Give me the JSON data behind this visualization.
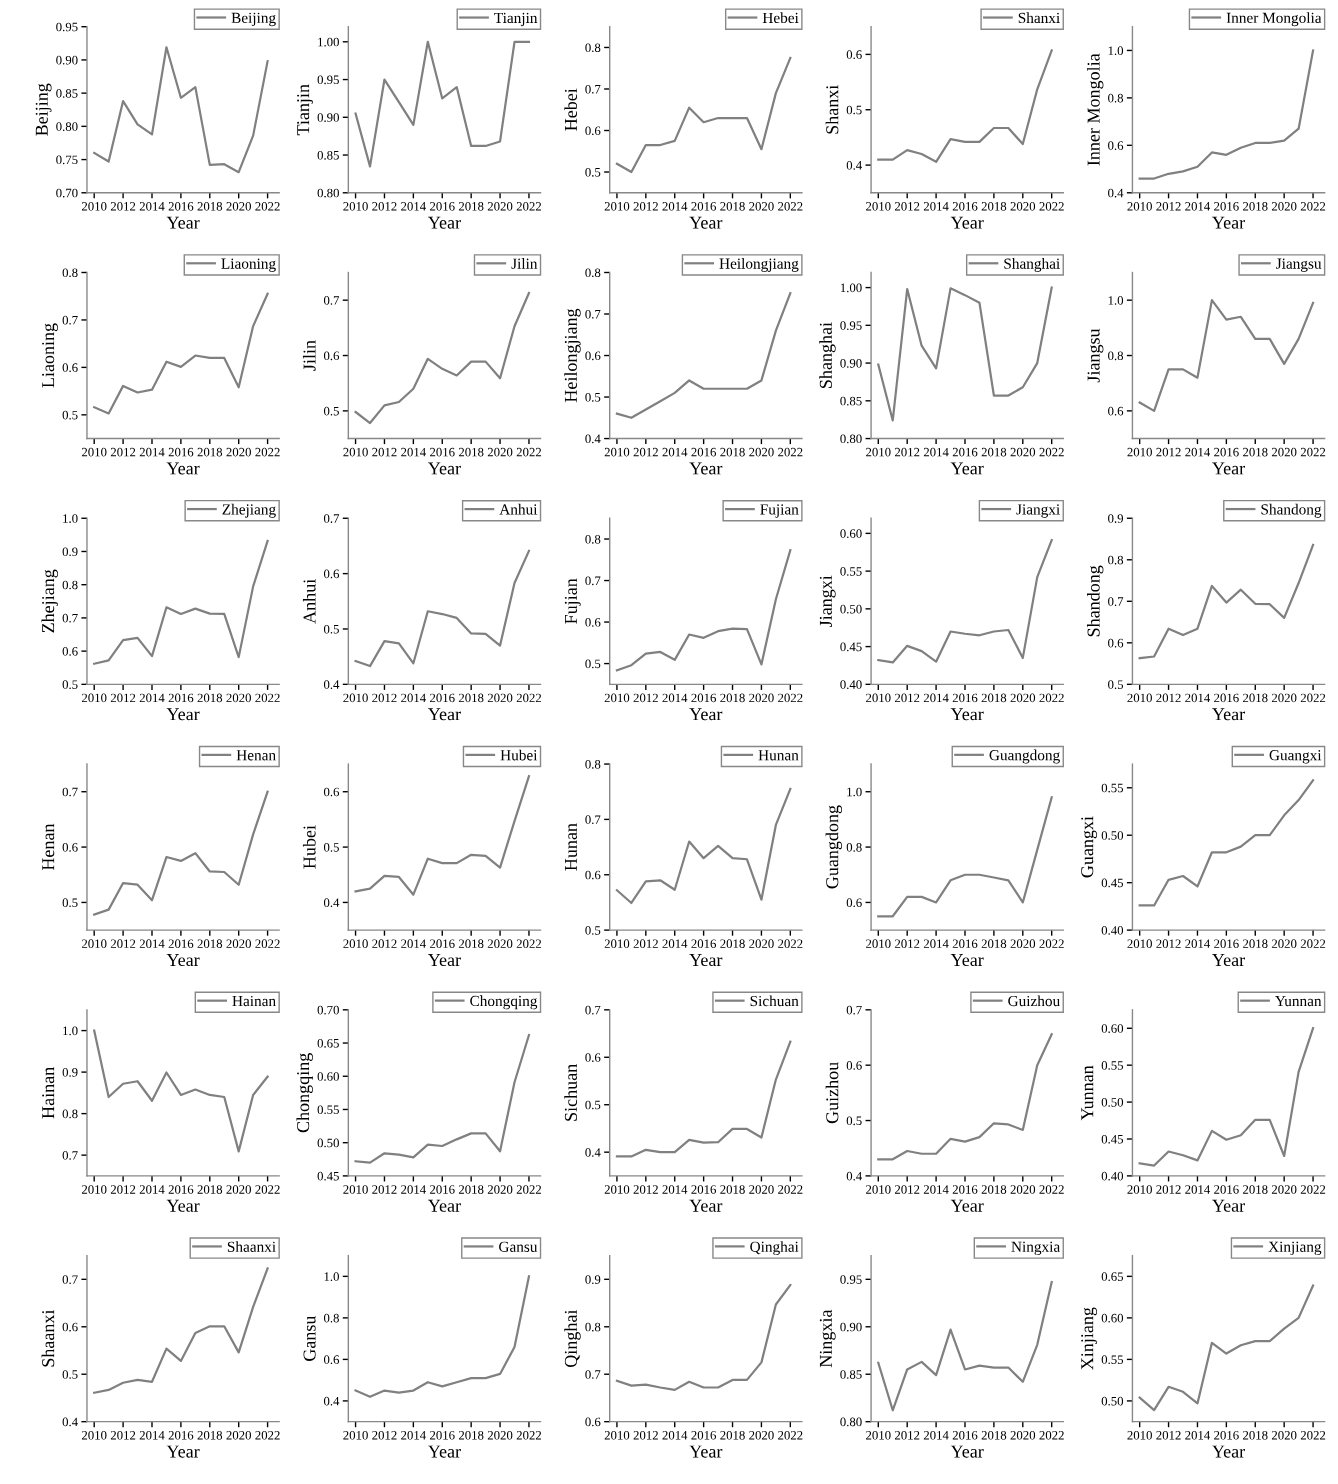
{
  "chart_data": [
    {
      "type": "line",
      "x": [
        2010,
        2011,
        2012,
        2013,
        2014,
        2015,
        2016,
        2017,
        2018,
        2019,
        2020,
        2021,
        2022
      ],
      "xlim": [
        2009.5,
        2022.8
      ],
      "xticks": [
        2010,
        2012,
        2014,
        2016,
        2018,
        2020,
        2022
      ],
      "xlabel": "Year",
      "ylabel": "Beijing",
      "ylim": [
        0.7,
        0.95
      ],
      "yticks": [
        {
          "value": 0.7,
          "label": "0.70"
        },
        {
          "value": 0.75,
          "label": "0.75"
        },
        {
          "value": 0.8,
          "label": "0.80"
        },
        {
          "value": 0.85,
          "label": "0.85"
        },
        {
          "value": 0.9,
          "label": "0.90"
        },
        {
          "value": 0.95,
          "label": "0.95"
        }
      ],
      "legend": "top right",
      "series": [
        {
          "name": "Beijing",
          "color": "#808080",
          "values": [
            0.76,
            0.747,
            0.838,
            0.803,
            0.788,
            0.919,
            0.843,
            0.859,
            0.742,
            0.743,
            0.731,
            0.786,
            0.898
          ]
        }
      ]
    },
    {
      "type": "line",
      "x": [
        2010,
        2011,
        2012,
        2013,
        2014,
        2015,
        2016,
        2017,
        2018,
        2019,
        2020,
        2021,
        2022
      ],
      "xlim": [
        2009.5,
        2022.8
      ],
      "xticks": [
        2010,
        2012,
        2014,
        2016,
        2018,
        2020,
        2022
      ],
      "xlabel": "Year",
      "ylabel": "Tianjin",
      "ylim": [
        0.8,
        1.02
      ],
      "yticks": [
        {
          "value": 0.8,
          "label": "0.80"
        },
        {
          "value": 0.85,
          "label": "0.85"
        },
        {
          "value": 0.9,
          "label": "0.90"
        },
        {
          "value": 0.95,
          "label": "0.95"
        },
        {
          "value": 1.0,
          "label": "1.00"
        }
      ],
      "legend": "top right",
      "series": [
        {
          "name": "Tianjin",
          "color": "#808080",
          "values": [
            0.905,
            0.835,
            0.95,
            0.92,
            0.89,
            1.0,
            0.925,
            0.94,
            0.862,
            0.862,
            0.868,
            1.0,
            1.0
          ]
        }
      ]
    },
    {
      "type": "line",
      "x": [
        2010,
        2011,
        2012,
        2013,
        2014,
        2015,
        2016,
        2017,
        2018,
        2019,
        2020,
        2021,
        2022
      ],
      "xlim": [
        2009.5,
        2022.8
      ],
      "xticks": [
        2010,
        2012,
        2014,
        2016,
        2018,
        2020,
        2022
      ],
      "xlabel": "Year",
      "ylabel": "Hebei",
      "ylim": [
        0.45,
        0.85
      ],
      "yticks": [
        0.5,
        0.6,
        0.7,
        0.8
      ],
      "legend": "top right",
      "series": [
        {
          "name": "Hebei",
          "color": "#808080",
          "values": [
            0.52,
            0.5,
            0.565,
            0.565,
            0.575,
            0.655,
            0.62,
            0.63,
            0.63,
            0.63,
            0.555,
            0.69,
            0.775
          ]
        }
      ]
    },
    {
      "type": "line",
      "x": [
        2010,
        2011,
        2012,
        2013,
        2014,
        2015,
        2016,
        2017,
        2018,
        2019,
        2020,
        2021,
        2022
      ],
      "xlim": [
        2009.5,
        2022.8
      ],
      "xticks": [
        2010,
        2012,
        2014,
        2016,
        2018,
        2020,
        2022
      ],
      "xlabel": "Year",
      "ylabel": "Shanxi",
      "ylim": [
        0.35,
        0.65
      ],
      "yticks": [
        0.4,
        0.5,
        0.6
      ],
      "legend": "top right",
      "series": [
        {
          "name": "Shanxi",
          "color": "#808080",
          "values": [
            0.41,
            0.41,
            0.427,
            0.42,
            0.406,
            0.447,
            0.442,
            0.442,
            0.467,
            0.467,
            0.438,
            0.537,
            0.607
          ]
        }
      ]
    },
    {
      "type": "line",
      "x": [
        2010,
        2011,
        2012,
        2013,
        2014,
        2015,
        2016,
        2017,
        2018,
        2019,
        2020,
        2021,
        2022
      ],
      "xlim": [
        2009.5,
        2022.8
      ],
      "xticks": [
        2010,
        2012,
        2014,
        2016,
        2018,
        2020,
        2022
      ],
      "xlabel": "Year",
      "ylabel": "Inner Mongolia",
      "ylim": [
        0.4,
        1.1
      ],
      "yticks": [
        0.4,
        0.6,
        0.8,
        {
          "value": 1.0,
          "label": "1.0"
        }
      ],
      "legend": "top right",
      "series": [
        {
          "name": "Inner Mongolia",
          "color": "#808080",
          "values": [
            0.46,
            0.46,
            0.48,
            0.49,
            0.51,
            0.57,
            0.56,
            0.59,
            0.61,
            0.61,
            0.62,
            0.67,
            1.0
          ]
        }
      ]
    },
    {
      "type": "line",
      "x": [
        2010,
        2011,
        2012,
        2013,
        2014,
        2015,
        2016,
        2017,
        2018,
        2019,
        2020,
        2021,
        2022
      ],
      "xlim": [
        2009.5,
        2022.8
      ],
      "xticks": [
        2010,
        2012,
        2014,
        2016,
        2018,
        2020,
        2022
      ],
      "xlabel": "Year",
      "ylabel": "Liaoning",
      "ylim": [
        0.45,
        0.8
      ],
      "yticks": [
        0.5,
        0.6,
        0.7,
        0.8
      ],
      "legend": "top right",
      "series": [
        {
          "name": "Liaoning",
          "color": "#808080",
          "values": [
            0.516,
            0.503,
            0.561,
            0.547,
            0.553,
            0.612,
            0.601,
            0.625,
            0.62,
            0.62,
            0.558,
            0.687,
            0.755
          ]
        }
      ]
    },
    {
      "type": "line",
      "x": [
        2010,
        2011,
        2012,
        2013,
        2014,
        2015,
        2016,
        2017,
        2018,
        2019,
        2020,
        2021,
        2022
      ],
      "xlim": [
        2009.5,
        2022.8
      ],
      "xticks": [
        2010,
        2012,
        2014,
        2016,
        2018,
        2020,
        2022
      ],
      "xlabel": "Year",
      "ylabel": "Jilin",
      "ylim": [
        0.45,
        0.75
      ],
      "yticks": [
        0.5,
        0.6,
        0.7
      ],
      "legend": "top right",
      "series": [
        {
          "name": "Jilin",
          "color": "#808080",
          "values": [
            0.498,
            0.478,
            0.51,
            0.516,
            0.54,
            0.594,
            0.576,
            0.564,
            0.589,
            0.589,
            0.559,
            0.653,
            0.713
          ]
        }
      ]
    },
    {
      "type": "line",
      "x": [
        2010,
        2011,
        2012,
        2013,
        2014,
        2015,
        2016,
        2017,
        2018,
        2019,
        2020,
        2021,
        2022
      ],
      "xlim": [
        2009.5,
        2022.8
      ],
      "xticks": [
        2010,
        2012,
        2014,
        2016,
        2018,
        2020,
        2022
      ],
      "xlabel": "Year",
      "ylabel": "Heilongjiang",
      "ylim": [
        0.4,
        0.8
      ],
      "yticks": [
        0.4,
        0.5,
        0.6,
        0.7,
        0.8
      ],
      "legend": "top right",
      "series": [
        {
          "name": "Heilongjiang",
          "color": "#808080",
          "values": [
            0.46,
            0.45,
            0.47,
            0.49,
            0.51,
            0.54,
            0.52,
            0.52,
            0.52,
            0.52,
            0.54,
            0.66,
            0.75
          ]
        }
      ]
    },
    {
      "type": "line",
      "x": [
        2010,
        2011,
        2012,
        2013,
        2014,
        2015,
        2016,
        2017,
        2018,
        2019,
        2020,
        2021,
        2022
      ],
      "xlim": [
        2009.5,
        2022.8
      ],
      "xticks": [
        2010,
        2012,
        2014,
        2016,
        2018,
        2020,
        2022
      ],
      "xlabel": "Year",
      "ylabel": "Shanghai",
      "ylim": [
        0.8,
        1.02
      ],
      "yticks": [
        {
          "value": 0.8,
          "label": "0.80"
        },
        {
          "value": 0.85,
          "label": "0.85"
        },
        {
          "value": 0.9,
          "label": "0.90"
        },
        {
          "value": 0.95,
          "label": "0.95"
        },
        {
          "value": 1.0,
          "label": "1.00"
        }
      ],
      "legend": "top right",
      "series": [
        {
          "name": "Shanghai",
          "color": "#808080",
          "values": [
            0.898,
            0.824,
            0.998,
            0.923,
            0.893,
            0.999,
            0.99,
            0.98,
            0.857,
            0.857,
            0.868,
            0.9,
            1.0
          ]
        }
      ]
    },
    {
      "type": "line",
      "x": [
        2010,
        2011,
        2012,
        2013,
        2014,
        2015,
        2016,
        2017,
        2018,
        2019,
        2020,
        2021,
        2022
      ],
      "xlim": [
        2009.5,
        2022.8
      ],
      "xticks": [
        2010,
        2012,
        2014,
        2016,
        2018,
        2020,
        2022
      ],
      "xlabel": "Year",
      "ylabel": "Jiangsu",
      "ylim": [
        0.5,
        1.1
      ],
      "yticks": [
        0.6,
        0.8,
        {
          "value": 1.0,
          "label": "1.0"
        }
      ],
      "legend": "top right",
      "series": [
        {
          "name": "Jiangsu",
          "color": "#808080",
          "values": [
            0.63,
            0.6,
            0.75,
            0.75,
            0.72,
            1.0,
            0.93,
            0.94,
            0.86,
            0.86,
            0.77,
            0.86,
            0.99
          ]
        }
      ]
    },
    {
      "type": "line",
      "x": [
        2010,
        2011,
        2012,
        2013,
        2014,
        2015,
        2016,
        2017,
        2018,
        2019,
        2020,
        2021,
        2022
      ],
      "xlim": [
        2009.5,
        2022.8
      ],
      "xticks": [
        2010,
        2012,
        2014,
        2016,
        2018,
        2020,
        2022
      ],
      "xlabel": "Year",
      "ylabel": "Zhejiang",
      "ylim": [
        0.5,
        1.0
      ],
      "yticks": [
        0.5,
        0.6,
        0.7,
        0.8,
        0.9,
        {
          "value": 1.0,
          "label": "1.0"
        }
      ],
      "legend": "top right",
      "series": [
        {
          "name": "Zhejiang",
          "color": "#808080",
          "values": [
            0.562,
            0.572,
            0.633,
            0.64,
            0.585,
            0.732,
            0.712,
            0.728,
            0.713,
            0.712,
            0.582,
            0.795,
            0.932
          ]
        }
      ]
    },
    {
      "type": "line",
      "x": [
        2010,
        2011,
        2012,
        2013,
        2014,
        2015,
        2016,
        2017,
        2018,
        2019,
        2020,
        2021,
        2022
      ],
      "xlim": [
        2009.5,
        2022.8
      ],
      "xticks": [
        2010,
        2012,
        2014,
        2016,
        2018,
        2020,
        2022
      ],
      "xlabel": "Year",
      "ylabel": "Anhui",
      "ylim": [
        0.4,
        0.7
      ],
      "yticks": [
        0.4,
        0.5,
        0.6,
        0.7
      ],
      "legend": "top right",
      "series": [
        {
          "name": "Anhui",
          "color": "#808080",
          "values": [
            0.442,
            0.433,
            0.478,
            0.474,
            0.438,
            0.532,
            0.527,
            0.52,
            0.492,
            0.491,
            0.47,
            0.583,
            0.641
          ]
        }
      ]
    },
    {
      "type": "line",
      "x": [
        2010,
        2011,
        2012,
        2013,
        2014,
        2015,
        2016,
        2017,
        2018,
        2019,
        2020,
        2021,
        2022
      ],
      "xlim": [
        2009.5,
        2022.8
      ],
      "xticks": [
        2010,
        2012,
        2014,
        2016,
        2018,
        2020,
        2022
      ],
      "xlabel": "Year",
      "ylabel": "Fujian",
      "ylim": [
        0.45,
        0.85
      ],
      "yticks": [
        0.5,
        0.6,
        0.7,
        0.8
      ],
      "legend": "top right",
      "series": [
        {
          "name": "Fujian",
          "color": "#808080",
          "values": [
            0.484,
            0.496,
            0.524,
            0.528,
            0.509,
            0.57,
            0.562,
            0.578,
            0.584,
            0.583,
            0.498,
            0.655,
            0.773
          ]
        }
      ]
    },
    {
      "type": "line",
      "x": [
        2010,
        2011,
        2012,
        2013,
        2014,
        2015,
        2016,
        2017,
        2018,
        2019,
        2020,
        2021,
        2022
      ],
      "xlim": [
        2009.5,
        2022.8
      ],
      "xticks": [
        2010,
        2012,
        2014,
        2016,
        2018,
        2020,
        2022
      ],
      "xlabel": "Year",
      "ylabel": "Jiangxi",
      "ylim": [
        0.4,
        0.62
      ],
      "yticks": [
        {
          "value": 0.4,
          "label": "0.40"
        },
        {
          "value": 0.45,
          "label": "0.45"
        },
        {
          "value": 0.5,
          "label": "0.50"
        },
        {
          "value": 0.55,
          "label": "0.55"
        },
        {
          "value": 0.6,
          "label": "0.60"
        }
      ],
      "legend": "top right",
      "series": [
        {
          "name": "Jiangxi",
          "color": "#808080",
          "values": [
            0.432,
            0.429,
            0.451,
            0.444,
            0.43,
            0.47,
            0.467,
            0.465,
            0.47,
            0.472,
            0.435,
            0.542,
            0.591
          ]
        }
      ]
    },
    {
      "type": "line",
      "x": [
        2010,
        2011,
        2012,
        2013,
        2014,
        2015,
        2016,
        2017,
        2018,
        2019,
        2020,
        2021,
        2022
      ],
      "xlim": [
        2009.5,
        2022.8
      ],
      "xticks": [
        2010,
        2012,
        2014,
        2016,
        2018,
        2020,
        2022
      ],
      "xlabel": "Year",
      "ylabel": "Shandong",
      "ylim": [
        0.5,
        0.9
      ],
      "yticks": [
        0.5,
        0.6,
        0.7,
        0.8,
        0.9
      ],
      "legend": "top right",
      "series": [
        {
          "name": "Shandong",
          "color": "#808080",
          "values": [
            0.563,
            0.567,
            0.634,
            0.619,
            0.634,
            0.737,
            0.697,
            0.728,
            0.694,
            0.693,
            0.66,
            0.744,
            0.836
          ]
        }
      ]
    },
    {
      "type": "line",
      "x": [
        2010,
        2011,
        2012,
        2013,
        2014,
        2015,
        2016,
        2017,
        2018,
        2019,
        2020,
        2021,
        2022
      ],
      "xlim": [
        2009.5,
        2022.8
      ],
      "xticks": [
        2010,
        2012,
        2014,
        2016,
        2018,
        2020,
        2022
      ],
      "xlabel": "Year",
      "ylabel": "Henan",
      "ylim": [
        0.45,
        0.75
      ],
      "yticks": [
        0.5,
        0.6,
        0.7
      ],
      "legend": "top right",
      "series": [
        {
          "name": "Henan",
          "color": "#808080",
          "values": [
            0.478,
            0.487,
            0.535,
            0.532,
            0.504,
            0.582,
            0.575,
            0.589,
            0.556,
            0.555,
            0.532,
            0.623,
            0.7
          ]
        }
      ]
    },
    {
      "type": "line",
      "x": [
        2010,
        2011,
        2012,
        2013,
        2014,
        2015,
        2016,
        2017,
        2018,
        2019,
        2020,
        2021,
        2022
      ],
      "xlim": [
        2009.5,
        2022.8
      ],
      "xticks": [
        2010,
        2012,
        2014,
        2016,
        2018,
        2020,
        2022
      ],
      "xlabel": "Year",
      "ylabel": "Hubei",
      "ylim": [
        0.35,
        0.65
      ],
      "yticks": [
        0.4,
        0.5,
        0.6
      ],
      "legend": "top right",
      "series": [
        {
          "name": "Hubei",
          "color": "#808080",
          "values": [
            0.42,
            0.425,
            0.448,
            0.446,
            0.414,
            0.479,
            0.471,
            0.471,
            0.486,
            0.484,
            0.463,
            0.547,
            0.628
          ]
        }
      ]
    },
    {
      "type": "line",
      "x": [
        2010,
        2011,
        2012,
        2013,
        2014,
        2015,
        2016,
        2017,
        2018,
        2019,
        2020,
        2021,
        2022
      ],
      "xlim": [
        2009.5,
        2022.8
      ],
      "xticks": [
        2010,
        2012,
        2014,
        2016,
        2018,
        2020,
        2022
      ],
      "xlabel": "Year",
      "ylabel": "Hunan",
      "ylim": [
        0.5,
        0.8
      ],
      "yticks": [
        0.5,
        0.6,
        0.7,
        0.8
      ],
      "legend": "top right",
      "series": [
        {
          "name": "Hunan",
          "color": "#808080",
          "values": [
            0.572,
            0.549,
            0.588,
            0.59,
            0.573,
            0.66,
            0.63,
            0.652,
            0.63,
            0.628,
            0.555,
            0.69,
            0.755
          ]
        }
      ]
    },
    {
      "type": "line",
      "x": [
        2010,
        2011,
        2012,
        2013,
        2014,
        2015,
        2016,
        2017,
        2018,
        2019,
        2020,
        2021,
        2022
      ],
      "xlim": [
        2009.5,
        2022.8
      ],
      "xticks": [
        2010,
        2012,
        2014,
        2016,
        2018,
        2020,
        2022
      ],
      "xlabel": "Year",
      "ylabel": "Guangdong",
      "ylim": [
        0.5,
        1.1
      ],
      "yticks": [
        0.6,
        0.8,
        {
          "value": 1.0,
          "label": "1.0"
        }
      ],
      "legend": "top right",
      "series": [
        {
          "name": "Guangdong",
          "color": "#808080",
          "values": [
            0.55,
            0.55,
            0.62,
            0.62,
            0.6,
            0.68,
            0.7,
            0.7,
            0.69,
            0.68,
            0.6,
            0.79,
            0.98
          ]
        }
      ]
    },
    {
      "type": "line",
      "x": [
        2010,
        2011,
        2012,
        2013,
        2014,
        2015,
        2016,
        2017,
        2018,
        2019,
        2020,
        2021,
        2022
      ],
      "xlim": [
        2009.5,
        2022.8
      ],
      "xticks": [
        2010,
        2012,
        2014,
        2016,
        2018,
        2020,
        2022
      ],
      "xlabel": "Year",
      "ylabel": "Guangxi",
      "ylim": [
        0.4,
        0.575
      ],
      "yticks": [
        {
          "value": 0.4,
          "label": "0.40"
        },
        {
          "value": 0.45,
          "label": "0.45"
        },
        {
          "value": 0.5,
          "label": "0.50"
        },
        {
          "value": 0.55,
          "label": "0.55"
        }
      ],
      "legend": "top right",
      "series": [
        {
          "name": "Guangxi",
          "color": "#808080",
          "values": [
            0.426,
            0.426,
            0.453,
            0.457,
            0.446,
            0.482,
            0.482,
            0.488,
            0.5,
            0.5,
            0.521,
            0.537,
            0.558
          ]
        }
      ]
    },
    {
      "type": "line",
      "x": [
        2010,
        2011,
        2012,
        2013,
        2014,
        2015,
        2016,
        2017,
        2018,
        2019,
        2020,
        2021,
        2022
      ],
      "xlim": [
        2009.5,
        2022.8
      ],
      "xticks": [
        2010,
        2012,
        2014,
        2016,
        2018,
        2020,
        2022
      ],
      "xlabel": "Year",
      "ylabel": "Hainan",
      "ylim": [
        0.65,
        1.05
      ],
      "yticks": [
        0.7,
        0.8,
        0.9,
        {
          "value": 1.0,
          "label": "1.0"
        }
      ],
      "legend": "top right",
      "series": [
        {
          "name": "Hainan",
          "color": "#808080",
          "values": [
            1.0,
            0.84,
            0.872,
            0.878,
            0.831,
            0.899,
            0.845,
            0.858,
            0.845,
            0.84,
            0.709,
            0.845,
            0.889
          ]
        }
      ]
    },
    {
      "type": "line",
      "x": [
        2010,
        2011,
        2012,
        2013,
        2014,
        2015,
        2016,
        2017,
        2018,
        2019,
        2020,
        2021,
        2022
      ],
      "xlim": [
        2009.5,
        2022.8
      ],
      "xticks": [
        2010,
        2012,
        2014,
        2016,
        2018,
        2020,
        2022
      ],
      "xlabel": "Year",
      "ylabel": "Chongqing",
      "ylim": [
        0.45,
        0.7
      ],
      "yticks": [
        {
          "value": 0.45,
          "label": "0.45"
        },
        {
          "value": 0.5,
          "label": "0.50"
        },
        {
          "value": 0.55,
          "label": "0.55"
        },
        {
          "value": 0.6,
          "label": "0.60"
        },
        {
          "value": 0.65,
          "label": "0.65"
        },
        {
          "value": 0.7,
          "label": "0.70"
        }
      ],
      "legend": "top right",
      "series": [
        {
          "name": "Chongqing",
          "color": "#808080",
          "values": [
            0.472,
            0.47,
            0.484,
            0.482,
            0.478,
            0.497,
            0.495,
            0.505,
            0.514,
            0.514,
            0.487,
            0.591,
            0.662
          ]
        }
      ]
    },
    {
      "type": "line",
      "x": [
        2010,
        2011,
        2012,
        2013,
        2014,
        2015,
        2016,
        2017,
        2018,
        2019,
        2020,
        2021,
        2022
      ],
      "xlim": [
        2009.5,
        2022.8
      ],
      "xticks": [
        2010,
        2012,
        2014,
        2016,
        2018,
        2020,
        2022
      ],
      "xlabel": "Year",
      "ylabel": "Sichuan",
      "ylim": [
        0.35,
        0.7
      ],
      "yticks": [
        0.4,
        0.5,
        0.6,
        0.7
      ],
      "legend": "top right",
      "series": [
        {
          "name": "Sichuan",
          "color": "#808080",
          "values": [
            0.391,
            0.391,
            0.405,
            0.4,
            0.4,
            0.426,
            0.42,
            0.421,
            0.449,
            0.449,
            0.431,
            0.553,
            0.633
          ]
        }
      ]
    },
    {
      "type": "line",
      "x": [
        2010,
        2011,
        2012,
        2013,
        2014,
        2015,
        2016,
        2017,
        2018,
        2019,
        2020,
        2021,
        2022
      ],
      "xlim": [
        2009.5,
        2022.8
      ],
      "xticks": [
        2010,
        2012,
        2014,
        2016,
        2018,
        2020,
        2022
      ],
      "xlabel": "Year",
      "ylabel": "Guizhou",
      "ylim": [
        0.4,
        0.7
      ],
      "yticks": [
        0.4,
        0.5,
        0.6,
        0.7
      ],
      "legend": "top right",
      "series": [
        {
          "name": "Guizhou",
          "color": "#808080",
          "values": [
            0.43,
            0.43,
            0.445,
            0.44,
            0.44,
            0.467,
            0.462,
            0.47,
            0.495,
            0.493,
            0.483,
            0.6,
            0.656
          ]
        }
      ]
    },
    {
      "type": "line",
      "x": [
        2010,
        2011,
        2012,
        2013,
        2014,
        2015,
        2016,
        2017,
        2018,
        2019,
        2020,
        2021,
        2022
      ],
      "xlim": [
        2009.5,
        2022.8
      ],
      "xticks": [
        2010,
        2012,
        2014,
        2016,
        2018,
        2020,
        2022
      ],
      "xlabel": "Year",
      "ylabel": "Yunnan",
      "ylim": [
        0.4,
        0.625
      ],
      "yticks": [
        {
          "value": 0.4,
          "label": "0.40"
        },
        {
          "value": 0.45,
          "label": "0.45"
        },
        {
          "value": 0.5,
          "label": "0.50"
        },
        {
          "value": 0.55,
          "label": "0.55"
        },
        {
          "value": 0.6,
          "label": "0.60"
        }
      ],
      "legend": "top right",
      "series": [
        {
          "name": "Yunnan",
          "color": "#808080",
          "values": [
            0.417,
            0.414,
            0.433,
            0.428,
            0.421,
            0.461,
            0.449,
            0.455,
            0.476,
            0.476,
            0.427,
            0.541,
            0.6
          ]
        }
      ]
    },
    {
      "type": "line",
      "x": [
        2010,
        2011,
        2012,
        2013,
        2014,
        2015,
        2016,
        2017,
        2018,
        2019,
        2020,
        2021,
        2022
      ],
      "xlim": [
        2009.5,
        2022.8
      ],
      "xticks": [
        2010,
        2012,
        2014,
        2016,
        2018,
        2020,
        2022
      ],
      "xlabel": "Year",
      "ylabel": "Shaanxi",
      "ylim": [
        0.4,
        0.75
      ],
      "yticks": [
        0.4,
        0.5,
        0.6,
        0.7
      ],
      "legend": "top right",
      "series": [
        {
          "name": "Shaanxi",
          "color": "#808080",
          "values": [
            0.461,
            0.467,
            0.482,
            0.488,
            0.484,
            0.554,
            0.528,
            0.587,
            0.601,
            0.601,
            0.546,
            0.642,
            0.723
          ]
        }
      ]
    },
    {
      "type": "line",
      "x": [
        2010,
        2011,
        2012,
        2013,
        2014,
        2015,
        2016,
        2017,
        2018,
        2019,
        2020,
        2021,
        2022
      ],
      "xlim": [
        2009.5,
        2022.8
      ],
      "xticks": [
        2010,
        2012,
        2014,
        2016,
        2018,
        2020,
        2022
      ],
      "xlabel": "Year",
      "ylabel": "Gansu",
      "ylim": [
        0.3,
        1.1
      ],
      "yticks": [
        0.4,
        0.6,
        0.8,
        {
          "value": 1.0,
          "label": "1.0"
        }
      ],
      "legend": "top right",
      "series": [
        {
          "name": "Gansu",
          "color": "#808080",
          "values": [
            0.45,
            0.42,
            0.45,
            0.44,
            0.45,
            0.49,
            0.47,
            0.49,
            0.51,
            0.51,
            0.53,
            0.66,
            1.0
          ]
        }
      ]
    },
    {
      "type": "line",
      "x": [
        2010,
        2011,
        2012,
        2013,
        2014,
        2015,
        2016,
        2017,
        2018,
        2019,
        2020,
        2021,
        2022
      ],
      "xlim": [
        2009.5,
        2022.8
      ],
      "xticks": [
        2010,
        2012,
        2014,
        2016,
        2018,
        2020,
        2022
      ],
      "xlabel": "Year",
      "ylabel": "Qinghai",
      "ylim": [
        0.6,
        0.95
      ],
      "yticks": [
        0.6,
        0.7,
        0.8,
        0.9
      ],
      "legend": "top right",
      "series": [
        {
          "name": "Qinghai",
          "color": "#808080",
          "values": [
            0.686,
            0.676,
            0.678,
            0.672,
            0.667,
            0.684,
            0.672,
            0.672,
            0.688,
            0.688,
            0.725,
            0.847,
            0.888
          ]
        }
      ]
    },
    {
      "type": "line",
      "x": [
        2010,
        2011,
        2012,
        2013,
        2014,
        2015,
        2016,
        2017,
        2018,
        2019,
        2020,
        2021,
        2022
      ],
      "xlim": [
        2009.5,
        2022.8
      ],
      "xticks": [
        2010,
        2012,
        2014,
        2016,
        2018,
        2020,
        2022
      ],
      "xlabel": "Year",
      "ylabel": "Ningxia",
      "ylim": [
        0.8,
        0.975
      ],
      "yticks": [
        {
          "value": 0.8,
          "label": "0.80"
        },
        {
          "value": 0.85,
          "label": "0.85"
        },
        {
          "value": 0.9,
          "label": "0.90"
        },
        {
          "value": 0.95,
          "label": "0.95"
        }
      ],
      "legend": "top right",
      "series": [
        {
          "name": "Ningxia",
          "color": "#808080",
          "values": [
            0.862,
            0.812,
            0.855,
            0.863,
            0.849,
            0.897,
            0.855,
            0.859,
            0.857,
            0.857,
            0.842,
            0.881,
            0.947
          ]
        }
      ]
    },
    {
      "type": "line",
      "x": [
        2010,
        2011,
        2012,
        2013,
        2014,
        2015,
        2016,
        2017,
        2018,
        2019,
        2020,
        2021,
        2022
      ],
      "xlim": [
        2009.5,
        2022.8
      ],
      "xticks": [
        2010,
        2012,
        2014,
        2016,
        2018,
        2020,
        2022
      ],
      "xlabel": "Year",
      "ylabel": "Xinjiang",
      "ylim": [
        0.475,
        0.675
      ],
      "yticks": [
        {
          "value": 0.5,
          "label": "0.50"
        },
        {
          "value": 0.55,
          "label": "0.55"
        },
        {
          "value": 0.6,
          "label": "0.60"
        },
        {
          "value": 0.65,
          "label": "0.65"
        }
      ],
      "legend": "top right",
      "series": [
        {
          "name": "Xinjiang",
          "color": "#808080",
          "values": [
            0.504,
            0.489,
            0.517,
            0.511,
            0.497,
            0.57,
            0.557,
            0.567,
            0.572,
            0.572,
            0.587,
            0.6,
            0.639
          ]
        }
      ]
    }
  ]
}
